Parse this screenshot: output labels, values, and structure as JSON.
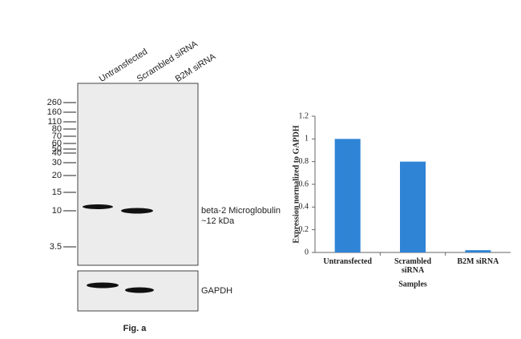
{
  "blot": {
    "lanes": [
      "Untransfected",
      "Scrambled siRNA",
      "B2M siRNA"
    ],
    "markers": [
      260,
      160,
      110,
      80,
      70,
      60,
      50,
      40,
      30,
      20,
      15,
      10,
      3.5
    ],
    "band_label": "beta-2 Microglobulin",
    "band_size": "~12 kDa",
    "control_label": "GAPDH"
  },
  "caption": "Fig. a",
  "chart_data": {
    "type": "bar",
    "categories": [
      "Untransfected",
      "Scrambled siRNA",
      "B2M siRNA"
    ],
    "values": [
      1,
      0.8,
      0.02
    ],
    "color": "#2f84d6",
    "ylim": [
      0,
      1.2
    ],
    "yticks": [
      0,
      0.2,
      0.4,
      0.6,
      0.8,
      1,
      1.2
    ],
    "xlabel": "Samples",
    "ylabel": "Expression normalized to GAPDH"
  }
}
